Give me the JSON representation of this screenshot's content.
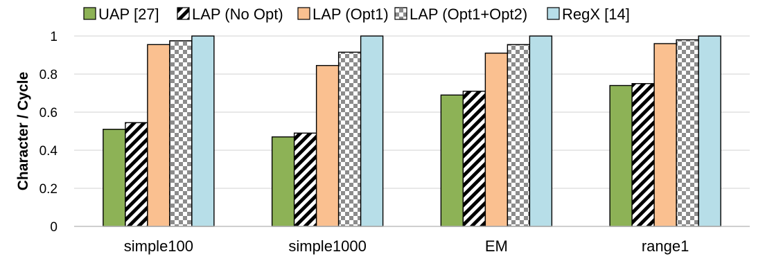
{
  "chart_data": {
    "type": "bar",
    "title": "",
    "xlabel": "",
    "ylabel": "Character / Cycle",
    "ylim": [
      0,
      1
    ],
    "yticks": [
      "0",
      "0.2",
      "0.4",
      "0.6",
      "0.8",
      "1"
    ],
    "grid": true,
    "legend_position": "top",
    "categories": [
      "simple100",
      "simple1000",
      "EM",
      "range1"
    ],
    "series": [
      {
        "name": "UAP [27]",
        "values": [
          0.51,
          0.47,
          0.69,
          0.74
        ],
        "color": "#8db256",
        "pattern": "solid"
      },
      {
        "name": "LAP (No Opt)",
        "values": [
          0.545,
          0.49,
          0.71,
          0.75
        ],
        "color": "#ffffff",
        "pattern": "diagonal-stripes"
      },
      {
        "name": "LAP (Opt1)",
        "values": [
          0.955,
          0.845,
          0.91,
          0.96
        ],
        "color": "#fac090",
        "pattern": "solid"
      },
      {
        "name": "LAP (Opt1+Opt2)",
        "values": [
          0.975,
          0.915,
          0.955,
          0.98
        ],
        "color": "#8c8c8c",
        "pattern": "checkerboard"
      },
      {
        "name": "RegX [14]",
        "values": [
          1.0,
          1.0,
          1.0,
          1.0
        ],
        "color": "#b7dee8",
        "pattern": "solid"
      }
    ]
  }
}
